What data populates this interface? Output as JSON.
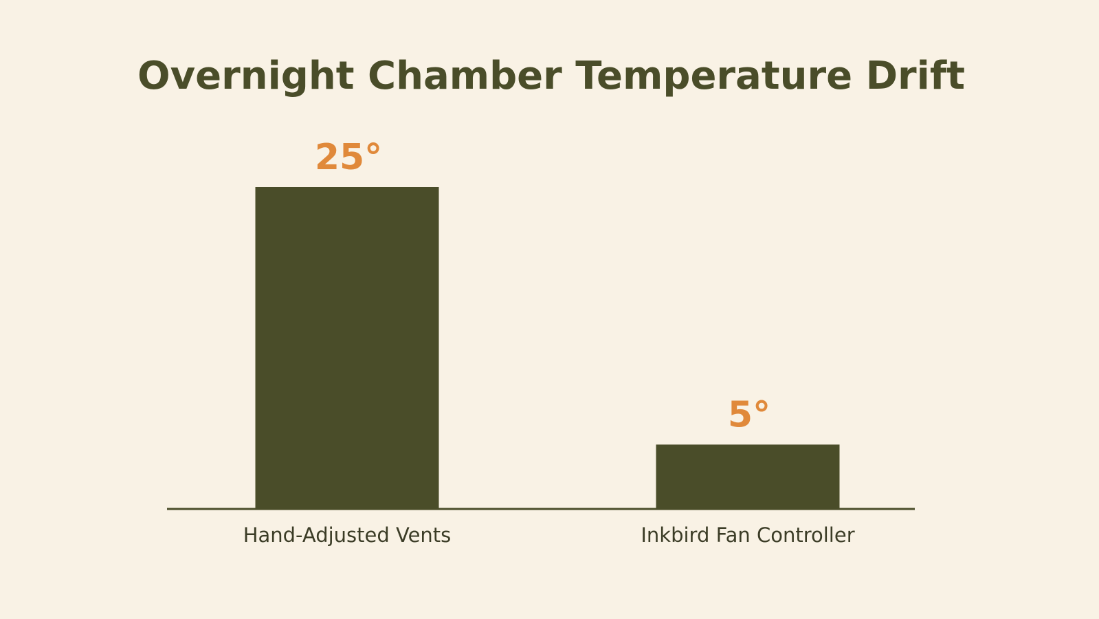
{
  "chart_data": {
    "type": "bar",
    "title": "Overnight Chamber Temperature Drift",
    "categories": [
      "Hand-Adjusted Vents",
      "Inkbird Fan Controller"
    ],
    "values": [
      25,
      5
    ],
    "value_labels": [
      "25°",
      "5°"
    ],
    "color": "#4a4d29",
    "label_color": "#e0893a"
  }
}
